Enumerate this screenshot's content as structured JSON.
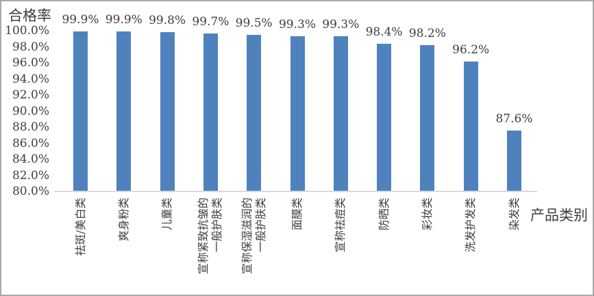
{
  "chart_data": {
    "type": "bar",
    "title": "",
    "ylabel": "合格率",
    "xlabel": "产品类别",
    "categories": [
      {
        "label": "祛斑/美白类",
        "lines": [
          "祛斑/美白类"
        ]
      },
      {
        "label": "爽身粉类",
        "lines": [
          "爽身粉类"
        ]
      },
      {
        "label": "儿童类",
        "lines": [
          "儿童类"
        ]
      },
      {
        "label": "宣称紧致抗皱的一般护肤类",
        "lines": [
          "宣称紧致抗皱的",
          "一般护肤类"
        ]
      },
      {
        "label": "宣称保湿滋润的一般护肤类",
        "lines": [
          "宣称保湿滋润的",
          "一般护肤类"
        ]
      },
      {
        "label": "面膜类",
        "lines": [
          "面膜类"
        ]
      },
      {
        "label": "宣称祛痘类",
        "lines": [
          "宣称祛痘类"
        ]
      },
      {
        "label": "防晒类",
        "lines": [
          "防晒类"
        ]
      },
      {
        "label": "彩妆类",
        "lines": [
          "彩妆类"
        ]
      },
      {
        "label": "洗发护发类",
        "lines": [
          "洗发护发类"
        ]
      },
      {
        "label": "染发类",
        "lines": [
          "染发类"
        ]
      }
    ],
    "values": [
      99.9,
      99.9,
      99.8,
      99.7,
      99.5,
      99.3,
      99.3,
      98.4,
      98.2,
      96.2,
      87.6
    ],
    "value_labels": [
      "99.9%",
      "99.9%",
      "99.8%",
      "99.7%",
      "99.5%",
      "99.3%",
      "99.3%",
      "98.4%",
      "98.2%",
      "96.2%",
      "87.6%"
    ],
    "ylim": [
      80,
      100
    ],
    "ytick_step": 2,
    "ytick_labels": [
      "100.0%",
      "98.0%",
      "96.0%",
      "94.0%",
      "92.0%",
      "90.0%",
      "88.0%",
      "86.0%",
      "84.0%",
      "82.0%",
      "80.0%"
    ],
    "grid": "off",
    "legend": "none",
    "bar_color": "#4f81bd",
    "text_color": "#3d3d3d",
    "axis_line_color": "#d9d9d9"
  }
}
